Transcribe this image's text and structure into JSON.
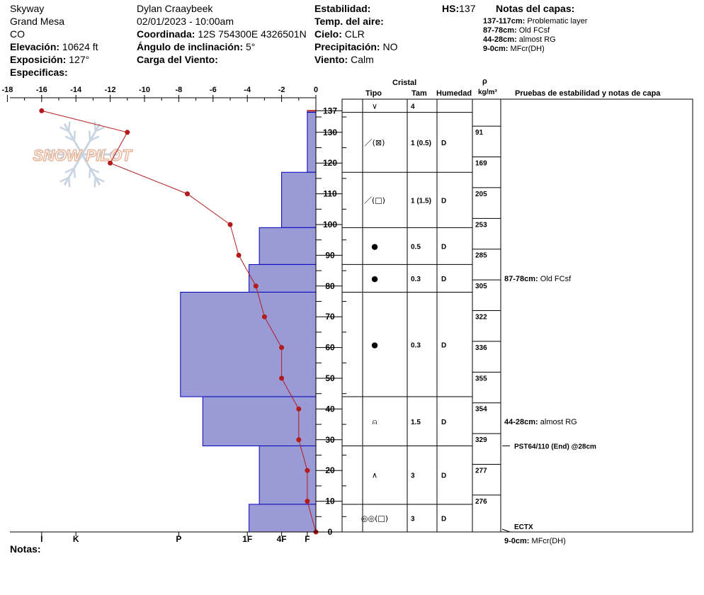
{
  "header": {
    "location": "Skyway",
    "range": "Grand Mesa",
    "state": "CO",
    "elevation_label": "Elevación:",
    "elevation_value": "10624 ft",
    "aspect_label": "Exposición:",
    "aspect_value": "127°",
    "specifics_label": "Especificas:",
    "observer": "Dylan Craaybeek",
    "datetime": "02/01/2023 - 10:00am",
    "coord_label": "Coordinada:",
    "coord_value": "12S 754300E 4326501N",
    "slope_label": "Ángulo de inclinación:",
    "slope_value": "5°",
    "wind_load_label": "Carga del Viento:",
    "stability_label": "Estabilidad:",
    "air_temp_label": "Temp. del aire:",
    "sky_label": "Cielo:",
    "sky_value": "CLR",
    "precip_label": "Precipitación:",
    "precip_value": "NO",
    "wind_label": "Viento:",
    "wind_value": "Calm",
    "hs_label": "HS:",
    "hs_value": "137"
  },
  "layer_notes": {
    "title": "Notas del capas:",
    "items": [
      {
        "range": "137-117cm:",
        "text": "Problematic layer"
      },
      {
        "range": "87-78cm:",
        "text": "Old FCsf"
      },
      {
        "range": "44-28cm:",
        "text": "almost RG"
      },
      {
        "range": "9-0cm:",
        "text": "MFcr(DH)"
      }
    ]
  },
  "columns": {
    "crystal": "Cristal",
    "type": "Tipo",
    "size": "Tam",
    "moisture": "Humedad",
    "rho": "ρ",
    "density_unit": "kg/m³",
    "tests": "Pruebas de estabilidad y notas de capa"
  },
  "notes_label": "Notas:",
  "watermark": "SNOW PILOT",
  "colors": {
    "hardness_fill": "#9a9ad6",
    "hardness_stroke": "#0000bb",
    "temp": "#b31b1b"
  },
  "chart_data": {
    "type": "snow-profile",
    "temperature_axis": {
      "ticks": [
        -18,
        -16,
        -14,
        -12,
        -10,
        -8,
        -6,
        -4,
        -2,
        0
      ],
      "range": [
        -18,
        0
      ]
    },
    "depth_axis": {
      "ticks": [
        137,
        130,
        120,
        110,
        100,
        90,
        80,
        70,
        60,
        50,
        40,
        30,
        20,
        10,
        0
      ],
      "range": [
        0,
        137
      ]
    },
    "hardness_axis": {
      "labels": [
        "I",
        "K",
        "P",
        "1F",
        "4F",
        "F"
      ],
      "temp_equivalent": [
        -16,
        -14,
        -8,
        -4,
        -2,
        -0.5
      ]
    },
    "temperature_profile": [
      {
        "depth": 137,
        "temp": -16
      },
      {
        "depth": 130,
        "temp": -11
      },
      {
        "depth": 120,
        "temp": -12
      },
      {
        "depth": 110,
        "temp": -7.5
      },
      {
        "depth": 100,
        "temp": -5
      },
      {
        "depth": 90,
        "temp": -4.5
      },
      {
        "depth": 80,
        "temp": -3.5
      },
      {
        "depth": 70,
        "temp": -3
      },
      {
        "depth": 60,
        "temp": -2
      },
      {
        "depth": 50,
        "temp": -2
      },
      {
        "depth": 40,
        "temp": -1
      },
      {
        "depth": 30,
        "temp": -1
      },
      {
        "depth": 20,
        "temp": -0.5
      },
      {
        "depth": 10,
        "temp": -0.5
      },
      {
        "depth": 0,
        "temp": 0
      }
    ],
    "layers": [
      {
        "top": 137,
        "bottom": 136.5,
        "hardness_temp": -0.5,
        "type": "∨",
        "size": "4",
        "moisture": ""
      },
      {
        "top": 136.5,
        "bottom": 117,
        "hardness_temp": -0.5,
        "type": "／(⊠)",
        "size": "1 (0.5)",
        "moisture": "D"
      },
      {
        "top": 117,
        "bottom": 99,
        "hardness_temp": -2,
        "type": "／(□)",
        "size": "1 (1.5)",
        "moisture": "D"
      },
      {
        "top": 99,
        "bottom": 87,
        "hardness_temp": -3.3,
        "type": "●",
        "size": "0.5",
        "moisture": "D"
      },
      {
        "top": 87,
        "bottom": 78,
        "hardness_temp": -3.9,
        "type": "●",
        "size": "0.3",
        "moisture": "D"
      },
      {
        "top": 78,
        "bottom": 44,
        "hardness_temp": -7.9,
        "type": "●",
        "size": "0.3",
        "moisture": "D"
      },
      {
        "top": 44,
        "bottom": 28,
        "hardness_temp": -6.6,
        "type": "⍝",
        "size": "1.5",
        "moisture": "D"
      },
      {
        "top": 28,
        "bottom": 9,
        "hardness_temp": -3.3,
        "type": "∧",
        "size": "3",
        "moisture": "D"
      },
      {
        "top": 9,
        "bottom": 0,
        "hardness_temp": -3.9,
        "type": "◎◎(□)",
        "size": "3",
        "moisture": "D"
      }
    ],
    "densities": [
      {
        "depth": 127,
        "value": "91"
      },
      {
        "depth": 117,
        "value": "169"
      },
      {
        "depth": 107,
        "value": "205"
      },
      {
        "depth": 97,
        "value": "253"
      },
      {
        "depth": 87,
        "value": "285"
      },
      {
        "depth": 77,
        "value": "305"
      },
      {
        "depth": 67,
        "value": "322"
      },
      {
        "depth": 57,
        "value": "336"
      },
      {
        "depth": 47,
        "value": "355"
      },
      {
        "depth": 37,
        "value": "354"
      },
      {
        "depth": 27,
        "value": "329"
      },
      {
        "depth": 17,
        "value": "277"
      },
      {
        "depth": 7,
        "value": "276"
      }
    ],
    "test_notes": [
      {
        "depth": 82.5,
        "range": "87-78cm:",
        "text": "Old FCsf"
      },
      {
        "depth": 36,
        "range": "44-28cm:",
        "text": "almost RG"
      }
    ],
    "tests": [
      {
        "depth": 28,
        "text": "PST64/110 (End) @28cm"
      },
      {
        "depth": 0,
        "text": "ECTX"
      }
    ],
    "bottom_note": {
      "range": "9-0cm:",
      "text": "MFcr(DH)"
    }
  }
}
